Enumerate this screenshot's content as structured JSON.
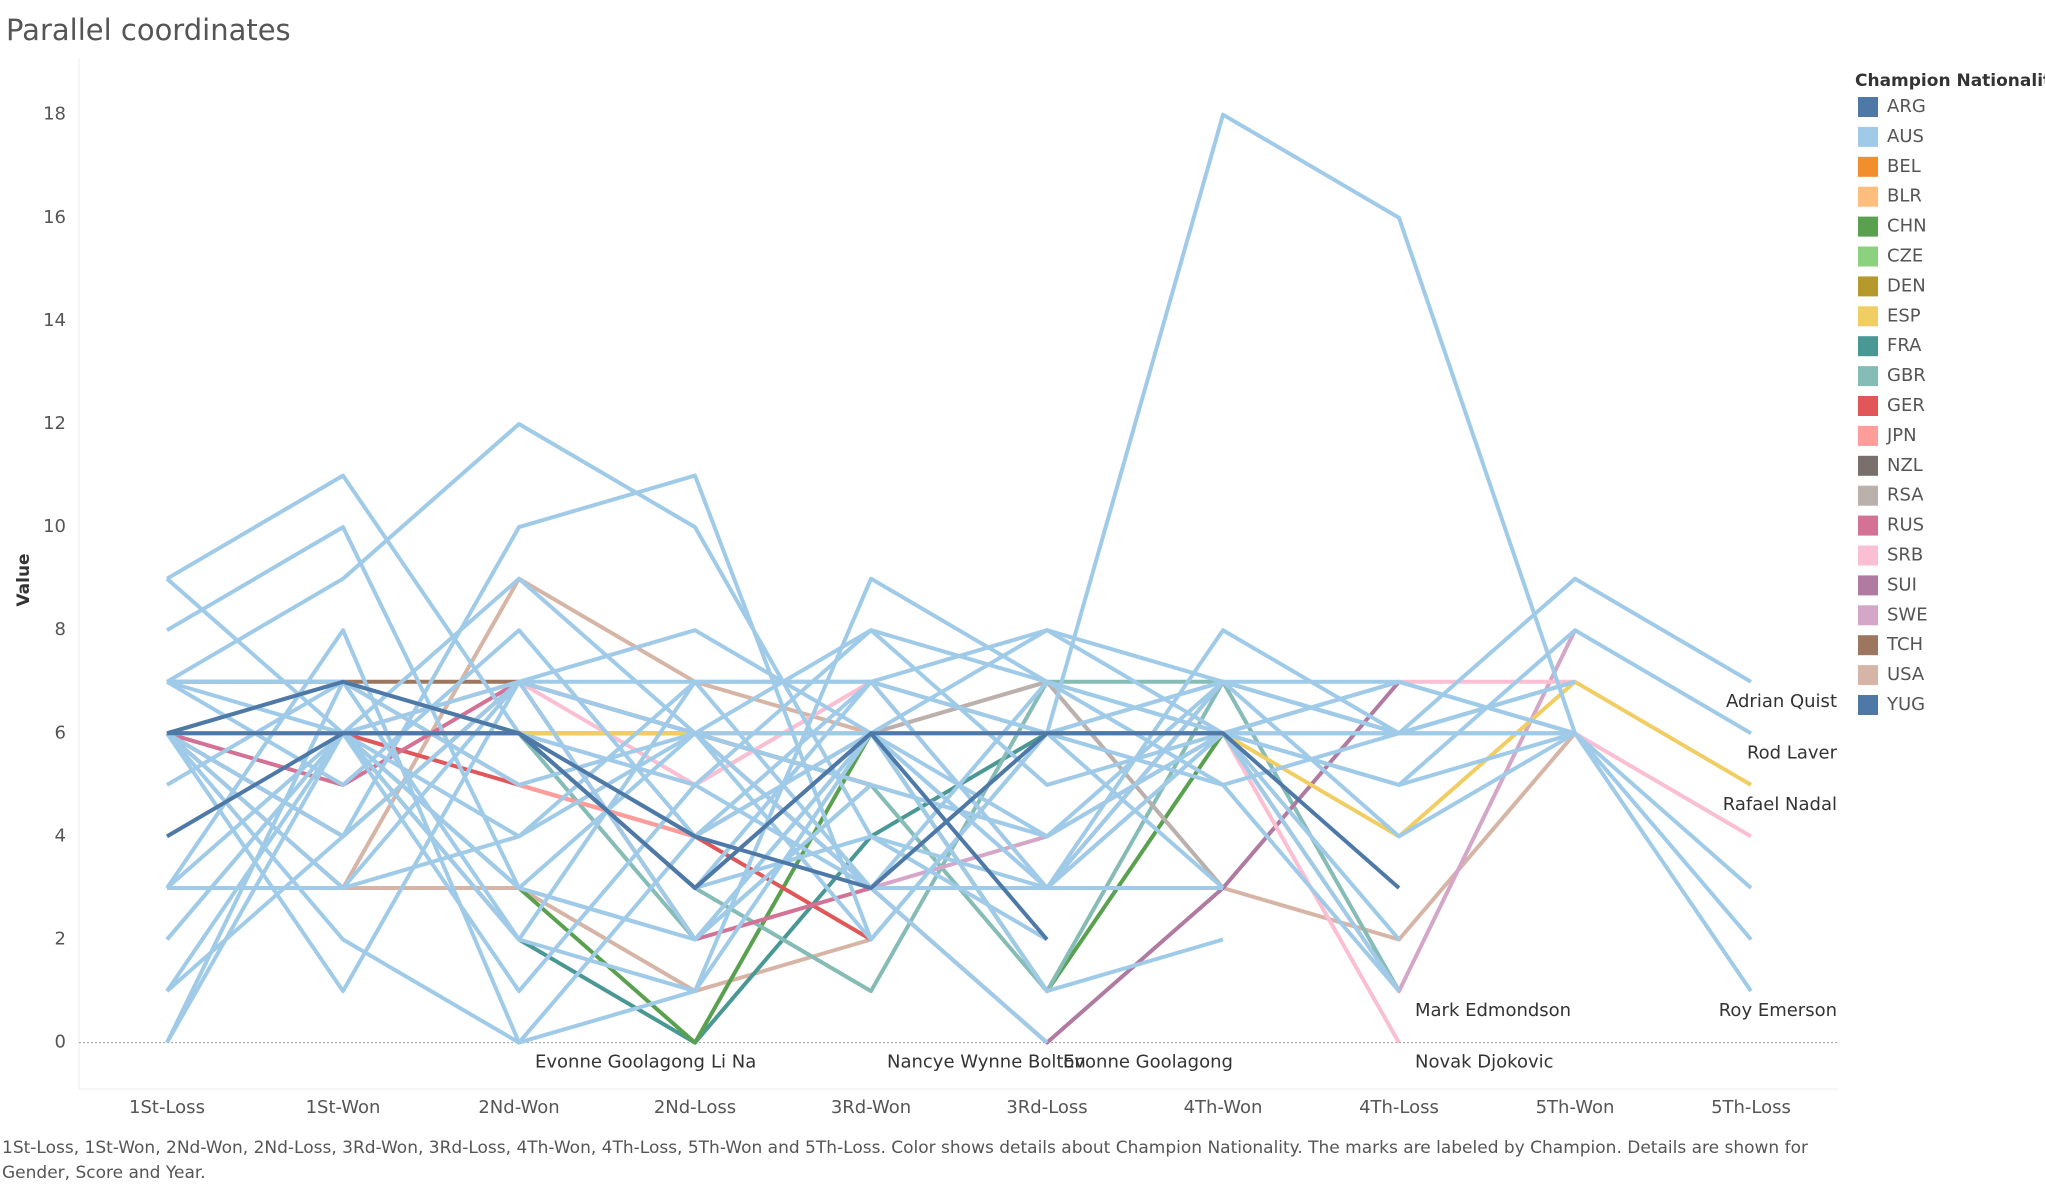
{
  "chart_data": {
    "type": "line",
    "title": "Parallel coordinates",
    "y_label": "Value",
    "categories": [
      "1St-Loss",
      "1St-Won",
      "2Nd-Won",
      "2Nd-Loss",
      "3Rd-Won",
      "3Rd-Loss",
      "4Th-Won",
      "4Th-Loss",
      "5Th-Won",
      "5Th-Loss"
    ],
    "ylim": [
      -0.9,
      19.1
    ],
    "yticks": [
      0,
      2,
      4,
      6,
      8,
      10,
      12,
      14,
      16,
      18
    ],
    "grid": false,
    "zero_line": true,
    "legend": {
      "title": "Champion Nationality",
      "position": "right",
      "items": [
        {
          "name": "ARG",
          "color": "#4e79a7"
        },
        {
          "name": "AUS",
          "color": "#a0cbe8"
        },
        {
          "name": "BEL",
          "color": "#f28e2b"
        },
        {
          "name": "BLR",
          "color": "#ffbe7d"
        },
        {
          "name": "CHN",
          "color": "#59a14f"
        },
        {
          "name": "CZE",
          "color": "#8cd17d"
        },
        {
          "name": "DEN",
          "color": "#b6992d"
        },
        {
          "name": "ESP",
          "color": "#f1ce63"
        },
        {
          "name": "FRA",
          "color": "#499894"
        },
        {
          "name": "GBR",
          "color": "#86bcb6"
        },
        {
          "name": "GER",
          "color": "#e15759"
        },
        {
          "name": "JPN",
          "color": "#ff9d9a"
        },
        {
          "name": "NZL",
          "color": "#79706e"
        },
        {
          "name": "RSA",
          "color": "#bab0ac"
        },
        {
          "name": "RUS",
          "color": "#d37295"
        },
        {
          "name": "SRB",
          "color": "#fabfd2"
        },
        {
          "name": "SUI",
          "color": "#b07aa1"
        },
        {
          "name": "SWE",
          "color": "#d4a6c8"
        },
        {
          "name": "TCH",
          "color": "#9d7660"
        },
        {
          "name": "USA",
          "color": "#d7b5a6"
        },
        {
          "name": "YUG",
          "color": "#4e79a7"
        }
      ]
    },
    "series": [
      {
        "color": "#d7b5a6",
        "values": [
          6,
          3,
          9,
          7,
          6,
          7,
          3,
          2,
          6,
          null
        ]
      },
      {
        "color": "#d7b5a6",
        "values": [
          6,
          3,
          3,
          1,
          2,
          null,
          null,
          null,
          null,
          null
        ]
      },
      {
        "color": "#9d7660",
        "values": [
          6,
          4,
          7,
          6,
          5,
          null,
          null,
          null,
          null,
          null
        ]
      },
      {
        "color": "#9d7660",
        "values": [
          7,
          7,
          7,
          6,
          5,
          null,
          null,
          null,
          null,
          null
        ]
      },
      {
        "color": "#499894",
        "values": [
          6,
          6,
          2,
          0,
          4,
          6,
          null,
          null,
          null,
          null
        ]
      },
      {
        "color": "#59a14f",
        "values": [
          6,
          6,
          3,
          0,
          6,
          1,
          6,
          null,
          null,
          null
        ]
      },
      {
        "color": "#86bcb6",
        "values": [
          6,
          6,
          6,
          3,
          1,
          7,
          7,
          6,
          7,
          null
        ]
      },
      {
        "color": "#86bcb6",
        "values": [
          6,
          6,
          6,
          2,
          5,
          1,
          7,
          1,
          null,
          null
        ]
      },
      {
        "color": "#e15759",
        "values": [
          6,
          6,
          5,
          4,
          2,
          null,
          null,
          null,
          null,
          null
        ]
      },
      {
        "color": "#ff9d9a",
        "values": [
          6,
          7,
          5,
          4,
          6,
          null,
          null,
          null,
          null,
          null
        ]
      },
      {
        "color": "#d37295",
        "values": [
          6,
          5,
          7,
          2,
          3,
          3,
          7,
          null,
          null,
          null
        ]
      },
      {
        "color": "#bab0ac",
        "values": [
          6,
          6,
          6,
          6,
          6,
          7,
          3,
          null,
          null,
          null
        ]
      },
      {
        "color": "#b07aa1",
        "values": [
          6,
          6,
          6,
          6,
          3,
          0,
          3,
          7,
          null,
          null
        ]
      },
      {
        "color": "#d4a6c8",
        "values": [
          6,
          6,
          7,
          6,
          3,
          4,
          6,
          1,
          8,
          null
        ]
      },
      {
        "color": "#fabfd2",
        "values": [
          6,
          6,
          6,
          5,
          7,
          3,
          6,
          7,
          7,
          null
        ]
      },
      {
        "color": "#fabfd2",
        "values": [
          6,
          6,
          7,
          5,
          7,
          6,
          6,
          0,
          null,
          null
        ]
      },
      {
        "color": "#fabfd2",
        "values": [
          6,
          6,
          6,
          6,
          6,
          6,
          6,
          6,
          6,
          4
        ]
      },
      {
        "color": "#f1ce63",
        "values": [
          6,
          6,
          6,
          6,
          6,
          6,
          6,
          4,
          7,
          5
        ]
      },
      {
        "color": "#a0cbe8",
        "values": [
          6,
          7,
          6,
          4,
          6,
          6,
          18,
          16,
          6,
          3
        ]
      },
      {
        "color": "#a0cbe8",
        "values": [
          9,
          11,
          6,
          3,
          7,
          3,
          7,
          6,
          9,
          7
        ]
      },
      {
        "color": "#a0cbe8",
        "values": [
          8,
          10,
          3,
          2,
          6,
          4,
          6,
          5,
          8,
          6
        ]
      },
      {
        "color": "#a0cbe8",
        "values": [
          7,
          9,
          12,
          10,
          4,
          3,
          8,
          6,
          6,
          1
        ]
      },
      {
        "color": "#a0cbe8",
        "values": [
          6,
          4,
          10,
          11,
          2,
          6,
          7,
          4,
          6,
          2
        ]
      },
      {
        "color": "#a0cbe8",
        "values": [
          3,
          8,
          0,
          1,
          9,
          7,
          5,
          1,
          null,
          null
        ]
      },
      {
        "color": "#a0cbe8",
        "values": [
          2,
          6,
          9,
          6,
          8,
          5,
          6,
          7,
          6,
          null
        ]
      },
      {
        "color": "#a0cbe8",
        "values": [
          1,
          6,
          2,
          7,
          7,
          8,
          7,
          6,
          null,
          null
        ]
      },
      {
        "color": "#a0cbe8",
        "values": [
          0,
          6,
          7,
          8,
          6,
          3,
          6,
          2,
          null,
          null
        ]
      },
      {
        "color": "#a0cbe8",
        "values": [
          7,
          5,
          8,
          4,
          6,
          1,
          2,
          null,
          null,
          null
        ]
      },
      {
        "color": "#a0cbe8",
        "values": [
          5,
          7,
          5,
          6,
          3,
          0,
          null,
          null,
          null,
          null
        ]
      },
      {
        "color": "#a0cbe8",
        "values": [
          6,
          2,
          0,
          4,
          7,
          6,
          7,
          6,
          6,
          null
        ]
      },
      {
        "color": "#a0cbe8",
        "values": [
          3,
          3,
          7,
          6,
          5,
          4,
          7,
          7,
          6,
          null
        ]
      },
      {
        "color": "#a0cbe8",
        "values": [
          6,
          6,
          3,
          6,
          2,
          6,
          5,
          6,
          7,
          null
        ]
      },
      {
        "color": "#a0cbe8",
        "values": [
          1,
          4,
          7,
          7,
          3,
          3,
          6,
          7,
          null,
          null
        ]
      },
      {
        "color": "#a0cbe8",
        "values": [
          0,
          7,
          6,
          3,
          4,
          2,
          null,
          null,
          null,
          null
        ]
      },
      {
        "color": "#a0cbe8",
        "values": [
          6,
          3,
          4,
          7,
          7,
          6,
          3,
          null,
          null,
          null
        ]
      },
      {
        "color": "#a0cbe8",
        "values": [
          2,
          6,
          6,
          5,
          3,
          7,
          6,
          6,
          null,
          null
        ]
      },
      {
        "color": "#a0cbe8",
        "values": [
          7,
          6,
          1,
          5,
          8,
          7,
          6,
          null,
          null,
          null
        ]
      },
      {
        "color": "#a0cbe8",
        "values": [
          6,
          1,
          7,
          2,
          5,
          4,
          6,
          5,
          6,
          null
        ]
      },
      {
        "color": "#a0cbe8",
        "values": [
          7,
          7,
          2,
          1,
          6,
          3,
          3,
          null,
          null,
          null
        ]
      },
      {
        "color": "#a0cbe8",
        "values": [
          3,
          6,
          4,
          6,
          6,
          8,
          6,
          6,
          7,
          null
        ]
      },
      {
        "color": "#a0cbe8",
        "values": [
          9,
          6,
          3,
          2,
          6,
          6,
          6,
          1,
          null,
          null
        ]
      },
      {
        "color": "#4e79a7",
        "values": [
          6,
          7,
          6,
          3,
          6,
          6,
          6,
          3,
          null,
          null
        ]
      },
      {
        "color": "#4e79a7",
        "values": [
          4,
          6,
          6,
          4,
          3,
          6,
          6,
          null,
          null,
          null
        ]
      },
      {
        "color": "#4e79a7",
        "values": [
          6,
          6,
          6,
          3,
          6,
          2,
          null,
          null,
          null,
          null
        ]
      }
    ],
    "annotations": [
      {
        "text": "Evonne Goolagong",
        "x": "2Nd-Won",
        "y": 0
      },
      {
        "text": "Li Na",
        "x": "2Nd-Loss",
        "y": 0
      },
      {
        "text": "Nancye Wynne Bolton",
        "x": "3Rd-Won",
        "y": 0
      },
      {
        "text": "Evonne Goolagong",
        "x": "3Rd-Loss",
        "y": 0
      },
      {
        "text": "Mark Edmondson",
        "x": "4Th-Loss",
        "y": 1
      },
      {
        "text": "Novak Djokovic",
        "x": "4Th-Loss",
        "y": 0
      },
      {
        "text": "Adrian Quist",
        "x": "5Th-Loss",
        "y": 7
      },
      {
        "text": "Rod Laver",
        "x": "5Th-Loss",
        "y": 6
      },
      {
        "text": "Rafael Nadal",
        "x": "5Th-Loss",
        "y": 5
      },
      {
        "text": "Roy Emerson",
        "x": "5Th-Loss",
        "y": 1
      }
    ],
    "caption": "1St-Loss, 1St-Won, 2Nd-Won, 2Nd-Loss, 3Rd-Won, 3Rd-Loss, 4Th-Won, 4Th-Loss, 5Th-Won and 5Th-Loss.  Color shows details about Champion Nationality.  The marks are labeled by Champion.  Details are shown for Gender, Score and Year."
  }
}
